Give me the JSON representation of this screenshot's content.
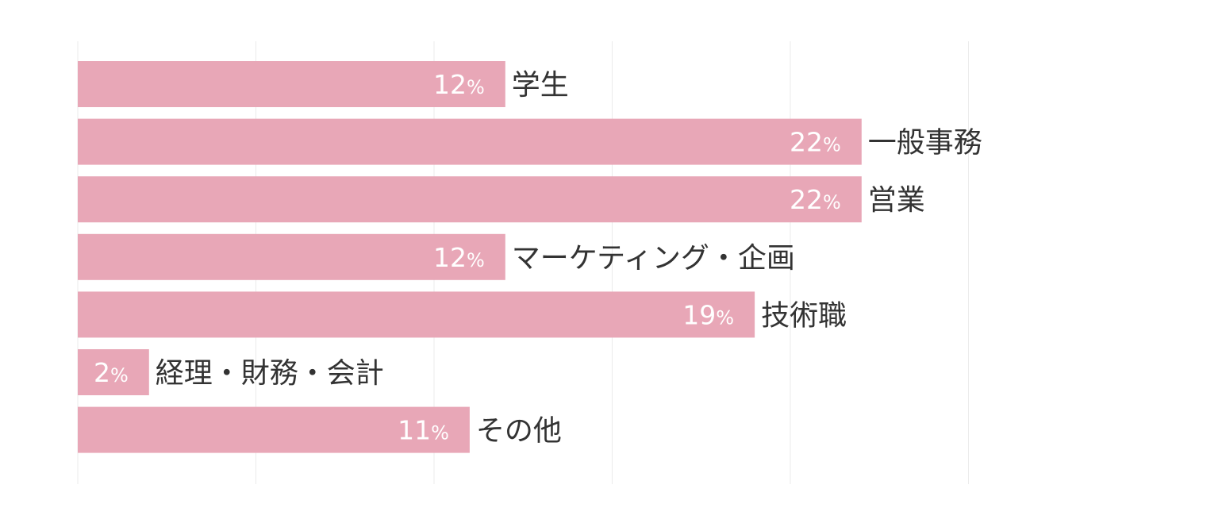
{
  "chart_data": {
    "type": "bar",
    "orientation": "horizontal",
    "categories": [
      "学生",
      "一般事務",
      "営業",
      "マーケティング・企画",
      "技術職",
      "経理・財務・会計",
      "その他"
    ],
    "values": [
      12,
      22,
      22,
      12,
      19,
      2,
      11
    ],
    "value_labels": [
      "12%",
      "22%",
      "22%",
      "12%",
      "19%",
      "2%",
      "11%"
    ],
    "unit": "%",
    "xlim": [
      0,
      25
    ],
    "grid": true,
    "legend": "none",
    "title": "",
    "xlabel": "",
    "ylabel": "",
    "colors": {
      "bar": "#e8a7b7",
      "value_label": "#ffffff",
      "category_label": "#333333",
      "grid": "#ebebeb"
    }
  }
}
